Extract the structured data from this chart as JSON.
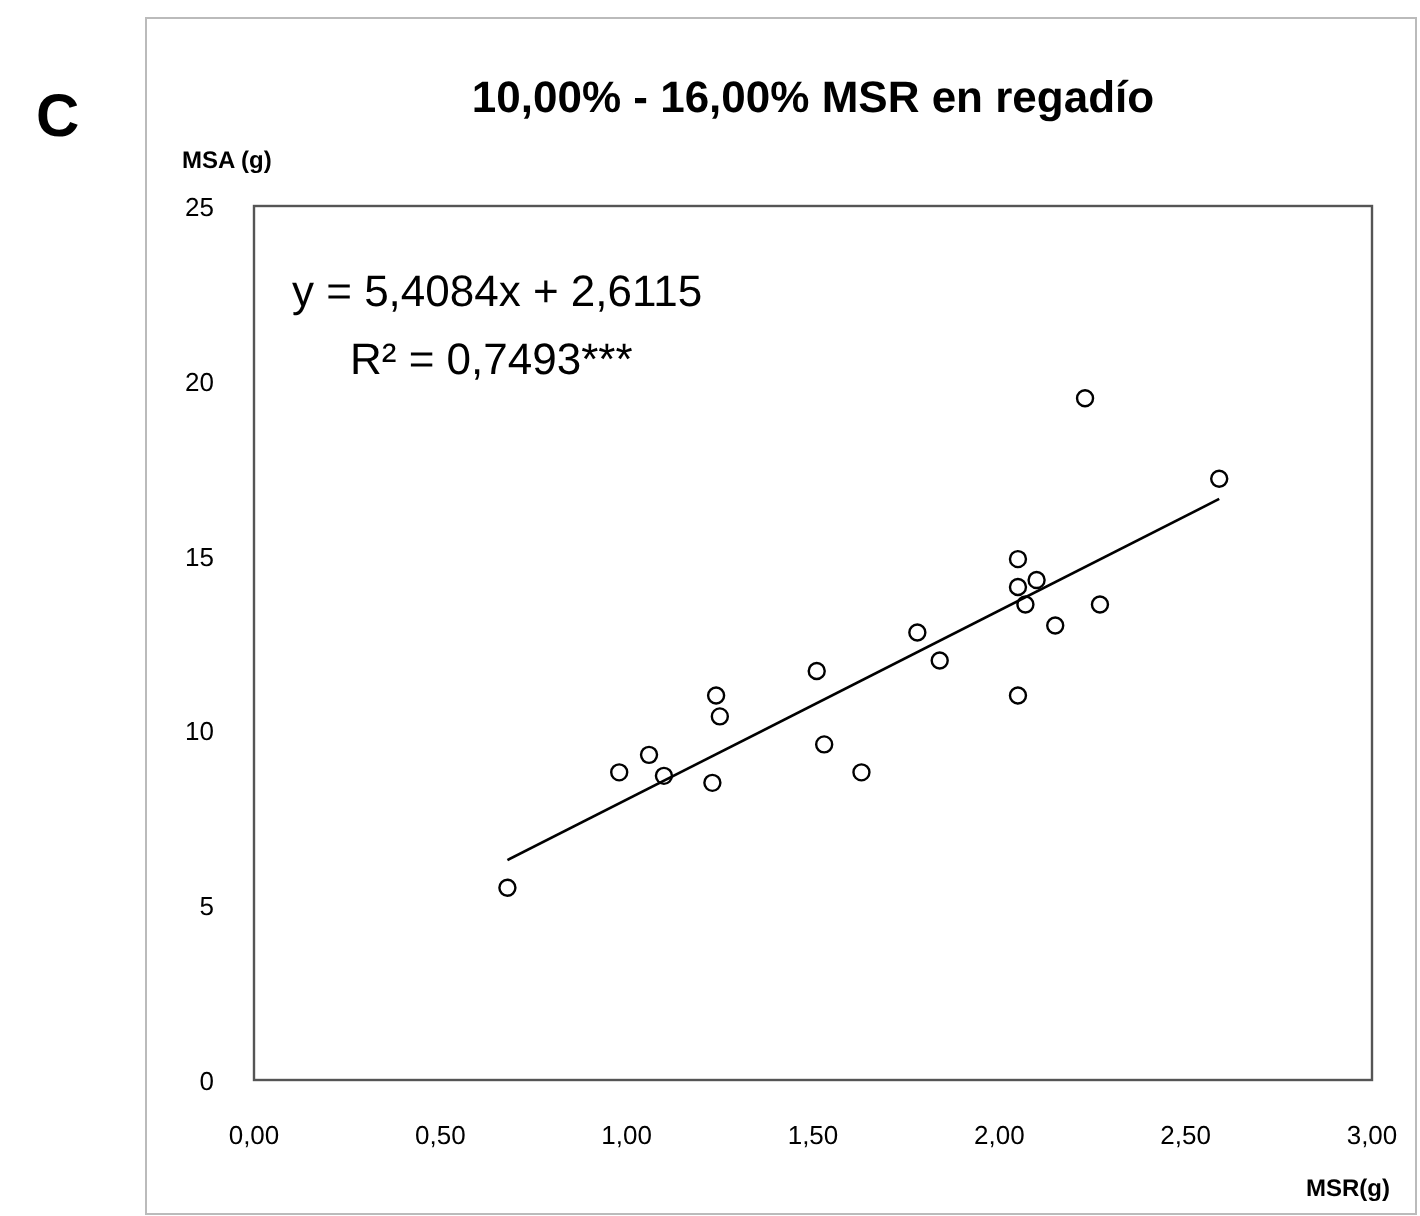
{
  "chart_data": {
    "type": "scatter",
    "title": "10,00% - 16,00% MSR en regadío",
    "xlabel": "MSR(g)",
    "ylabel": "MSA (g)",
    "annotations": [
      "C",
      "y = 5,4084x + 2,6115",
      "R² = 0,7493***"
    ],
    "xlim": [
      0,
      3
    ],
    "ylim": [
      0,
      25
    ],
    "xticks": [
      {
        "value": 0,
        "label": "0,00"
      },
      {
        "value": 0.5,
        "label": "0,50"
      },
      {
        "value": 1,
        "label": "1,00"
      },
      {
        "value": 1.5,
        "label": "1,50"
      },
      {
        "value": 2,
        "label": "2,00"
      },
      {
        "value": 2.5,
        "label": "2,50"
      },
      {
        "value": 3,
        "label": "3,00"
      }
    ],
    "yticks": [
      0,
      5,
      10,
      15,
      20,
      25
    ],
    "grid": false,
    "marker": "circle",
    "series": [
      {
        "color": "#000000",
        "x": [
          0.68,
          0.98,
          1.06,
          1.1,
          1.23,
          1.24,
          1.25,
          1.51,
          1.53,
          1.63,
          1.78,
          1.84,
          2.05,
          2.05,
          2.05,
          2.1,
          2.07,
          2.15,
          2.27,
          2.23,
          2.59
        ],
        "values": [
          5.5,
          8.8,
          9.3,
          8.7,
          8.5,
          11.0,
          10.4,
          11.7,
          9.6,
          8.8,
          12.8,
          12.0,
          11.0,
          14.9,
          14.1,
          14.3,
          13.6,
          13.0,
          13.6,
          19.5,
          17.2
        ]
      },
      {
        "type": "line",
        "color": "#000000",
        "marker": "none",
        "line_style": "solid",
        "x": [
          0.68,
          2.59
        ],
        "values": [
          6.29,
          16.62
        ]
      }
    ]
  }
}
